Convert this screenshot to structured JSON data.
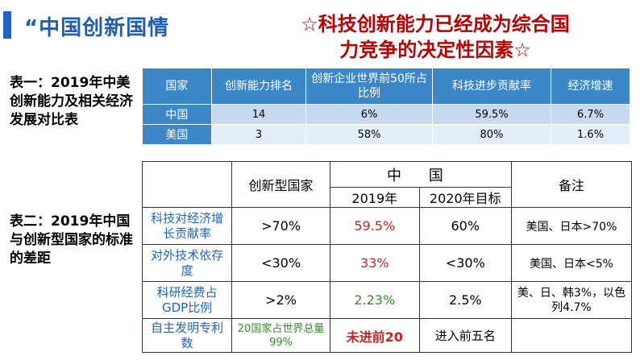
{
  "header": {
    "title_left": "“中国创新国情",
    "title_right_line1": "☆科技创新能力已经成为综合国",
    "title_right_line2": "力竞争的决定性因素☆"
  },
  "table1": {
    "label": "表一：2019年中美创新能力及相关经济发展对比表",
    "headers": [
      "国家",
      "创新能力排名",
      "创新企业世界前50所占比例",
      "科技进步贡献率",
      "经济增速"
    ],
    "rows": [
      [
        "中国",
        "14",
        "6%",
        "59.5%",
        "6.7%"
      ],
      [
        "美国",
        "3",
        "58%",
        "80%",
        "1.6%"
      ]
    ]
  },
  "table2": {
    "label": "表二：2019年中国与创新型国家的标准的差距",
    "header_innovative": "创新型国家",
    "header_china": "中 国",
    "header_2019": "2019年",
    "header_2020": "2020年目标",
    "header_notes": "备注",
    "rows": [
      {
        "item": "科技对经济增长贡献率",
        "innovative": ">70%",
        "y2019": "59.5%",
        "y2020": "60%",
        "note": "美国、日本>70%"
      },
      {
        "item": "对外技术依存度",
        "innovative": "<30%",
        "y2019": "33%",
        "y2020": "<30%",
        "note": "美国、日本<5%"
      },
      {
        "item": "科研经费占GDP比例",
        "innovative": ">2%",
        "y2019": "2.23%",
        "y2020": "2.5%",
        "note": "美、日、韩3%，以色列4.7%"
      },
      {
        "item": "自主发明专利数",
        "innovative": "20国家占世界总量99%",
        "y2019": "未进前20",
        "y2020": "进入前五名",
        "note": ""
      }
    ]
  },
  "colors": {
    "accent": "#1e64c8",
    "title_red": "#c00000",
    "table1_header": "#3b87c8",
    "value_red": "#d42020",
    "value_green": "#3a8a2a"
  }
}
